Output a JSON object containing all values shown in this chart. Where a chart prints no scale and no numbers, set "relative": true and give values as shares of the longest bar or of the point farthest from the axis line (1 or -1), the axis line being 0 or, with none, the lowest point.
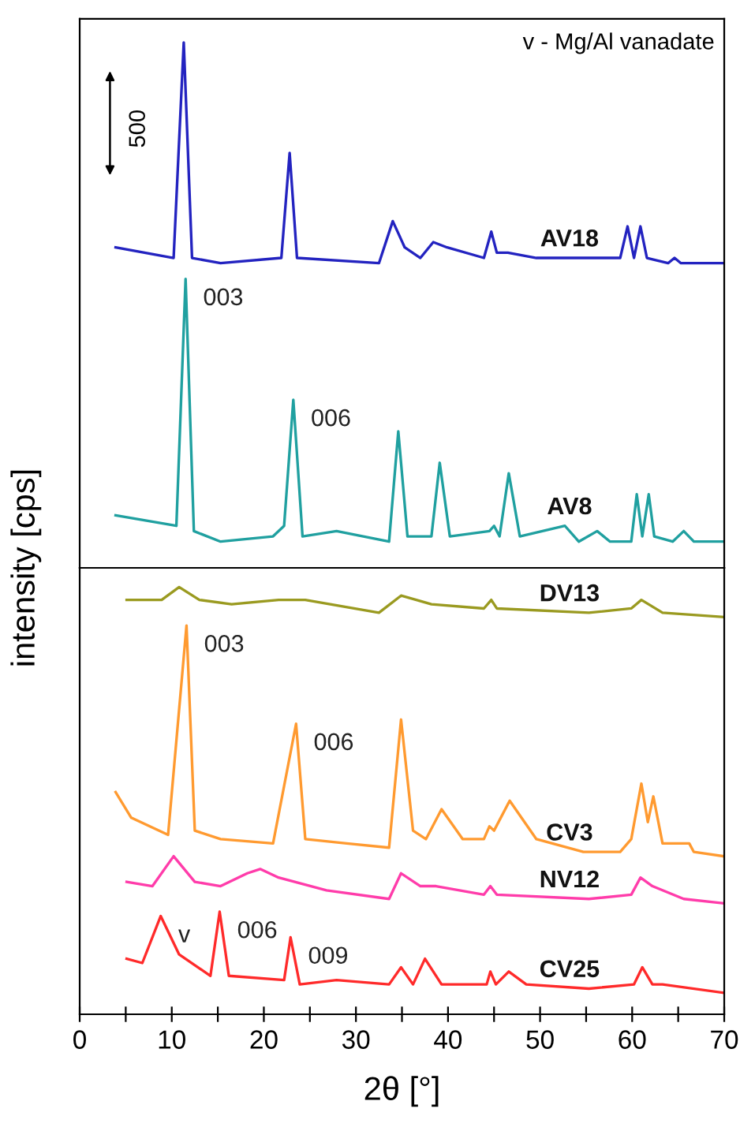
{
  "chart_data": [
    {
      "type": "line",
      "relative": true,
      "xlim": [
        0,
        70
      ],
      "tick_labels": false,
      "ylabel": "intensity [cps]",
      "legend": false,
      "grid": false,
      "annotations": [
        "v - Mg/Al vanadate",
        "500",
        {
          "text": "003",
          "x": 11.5,
          "y": 0.55
        },
        {
          "text": "006",
          "x": 23.2,
          "y": 0.32
        }
      ],
      "series": [
        {
          "name": "AV18",
          "color": "#2323c0",
          "x": [
            3.9,
            10.2,
            11.3,
            12.2,
            15.3,
            21.9,
            22.8,
            23.6,
            32.5,
            34.0,
            35.3,
            37.0,
            38.4,
            39.9,
            43.9,
            44.7,
            45.3,
            46.5,
            49.6,
            55.3,
            58.7,
            59.5,
            60.2,
            60.9,
            61.6,
            63.9,
            64.6,
            65.3,
            70
          ],
          "values": [
            0.61,
            0.59,
            1,
            0.59,
            0.58,
            0.59,
            0.79,
            0.59,
            0.58,
            0.66,
            0.61,
            0.59,
            0.62,
            0.61,
            0.59,
            0.64,
            0.6,
            0.6,
            0.59,
            0.59,
            0.59,
            0.65,
            0.59,
            0.65,
            0.59,
            0.58,
            0.59,
            0.58,
            0.58
          ]
        },
        {
          "name": "AV8",
          "color": "#20a0a0",
          "x": [
            3.9,
            10.5,
            11.5,
            12.4,
            15.3,
            21.0,
            22.2,
            23.2,
            24.2,
            27.9,
            33.6,
            34.6,
            35.6,
            38.2,
            39.1,
            40.2,
            44.5,
            45.0,
            45.6,
            46.6,
            47.8,
            52.7,
            54.2,
            56.2,
            57.6,
            59.9,
            60.5,
            61.1,
            61.8,
            62.4,
            64.4,
            65.6,
            66.7,
            69.9
          ],
          "values": [
            0.1,
            0.08,
            0.55,
            0.07,
            0.05,
            0.06,
            0.08,
            0.32,
            0.06,
            0.07,
            0.05,
            0.26,
            0.06,
            0.06,
            0.2,
            0.06,
            0.07,
            0.08,
            0.06,
            0.18,
            0.06,
            0.08,
            0.05,
            0.07,
            0.05,
            0.05,
            0.14,
            0.06,
            0.14,
            0.06,
            0.05,
            0.07,
            0.05,
            0.05
          ]
        }
      ]
    },
    {
      "type": "line",
      "relative": true,
      "xlim": [
        0,
        70
      ],
      "xticks": [
        0,
        {
          "value": 5,
          "label": null
        },
        10,
        {
          "value": 15,
          "label": null
        },
        20,
        {
          "value": 25,
          "label": null
        },
        30,
        {
          "value": 35,
          "label": null
        },
        40,
        {
          "value": 45,
          "label": null
        },
        50,
        {
          "value": 55,
          "label": null
        },
        60,
        {
          "value": 65,
          "label": null
        },
        70
      ],
      "tick_labels": "x",
      "xlabel": "2θ [°]",
      "legend": false,
      "grid": false,
      "annotations": [
        {
          "text": "003",
          "x": 11.6,
          "y": 0.91
        },
        {
          "text": "006",
          "x": 23.5,
          "y": 0.68
        },
        {
          "text": "v",
          "x": 8.8,
          "y": 0.23
        },
        {
          "text": "006",
          "x": 15.2,
          "y": 0.24
        },
        {
          "text": "009",
          "x": 22.9,
          "y": 0.18
        }
      ],
      "series": [
        {
          "name": "DV13",
          "color": "#9a9a20",
          "x": [
            5.1,
            8.9,
            10.8,
            13.0,
            16.5,
            21.6,
            24.5,
            32.5,
            34.9,
            38.2,
            43.9,
            44.7,
            45.3,
            55.3,
            59.9,
            61.0,
            63.3,
            69.9
          ],
          "values": [
            0.97,
            0.97,
            1,
            0.97,
            0.96,
            0.97,
            0.97,
            0.94,
            0.98,
            0.96,
            0.95,
            0.97,
            0.95,
            0.94,
            0.95,
            0.97,
            0.94,
            0.93
          ]
        },
        {
          "name": "CV3",
          "color": "#ff9a30",
          "x": [
            3.9,
            5.6,
            9.6,
            11.6,
            12.5,
            15.3,
            21.0,
            23.5,
            24.5,
            29.0,
            33.6,
            34.9,
            36.2,
            37.6,
            39.3,
            41.6,
            43.9,
            44.5,
            45.0,
            46.7,
            49.6,
            54.7,
            58.7,
            59.9,
            61.0,
            61.7,
            62.3,
            63.3,
            66.2,
            66.7,
            69.9
          ],
          "values": [
            0.52,
            0.46,
            0.42,
            0.91,
            0.43,
            0.41,
            0.4,
            0.68,
            0.41,
            0.4,
            0.39,
            0.69,
            0.43,
            0.41,
            0.48,
            0.41,
            0.41,
            0.44,
            0.43,
            0.5,
            0.41,
            0.38,
            0.38,
            0.41,
            0.54,
            0.45,
            0.51,
            0.4,
            0.4,
            0.38,
            0.37
          ]
        },
        {
          "name": "NV12",
          "color": "#ff3caa",
          "x": [
            5.1,
            7.9,
            10.2,
            12.5,
            15.3,
            18.2,
            19.6,
            21.6,
            26.8,
            33.6,
            34.9,
            37.0,
            38.7,
            43.9,
            44.6,
            45.3,
            55.3,
            59.9,
            60.9,
            62.2,
            65.6,
            69.9
          ],
          "values": [
            0.31,
            0.3,
            0.37,
            0.31,
            0.3,
            0.33,
            0.34,
            0.32,
            0.29,
            0.27,
            0.33,
            0.3,
            0.3,
            0.28,
            0.3,
            0.28,
            0.27,
            0.28,
            0.32,
            0.3,
            0.27,
            0.26
          ]
        },
        {
          "name": "CV25",
          "color": "#ff2a2a",
          "x": [
            5.1,
            6.8,
            8.8,
            10.8,
            14.2,
            15.2,
            16.2,
            22.2,
            22.9,
            23.9,
            27.9,
            33.6,
            34.9,
            36.2,
            37.5,
            39.3,
            44.2,
            44.6,
            45.2,
            46.6,
            48.5,
            55.3,
            60.2,
            61.1,
            62.2,
            63.3,
            70
          ],
          "values": [
            0.13,
            0.12,
            0.23,
            0.14,
            0.09,
            0.24,
            0.09,
            0.08,
            0.18,
            0.07,
            0.08,
            0.07,
            0.11,
            0.07,
            0.13,
            0.07,
            0.07,
            0.1,
            0.07,
            0.1,
            0.07,
            0.06,
            0.07,
            0.11,
            0.07,
            0.07,
            0.05
          ]
        }
      ]
    }
  ]
}
